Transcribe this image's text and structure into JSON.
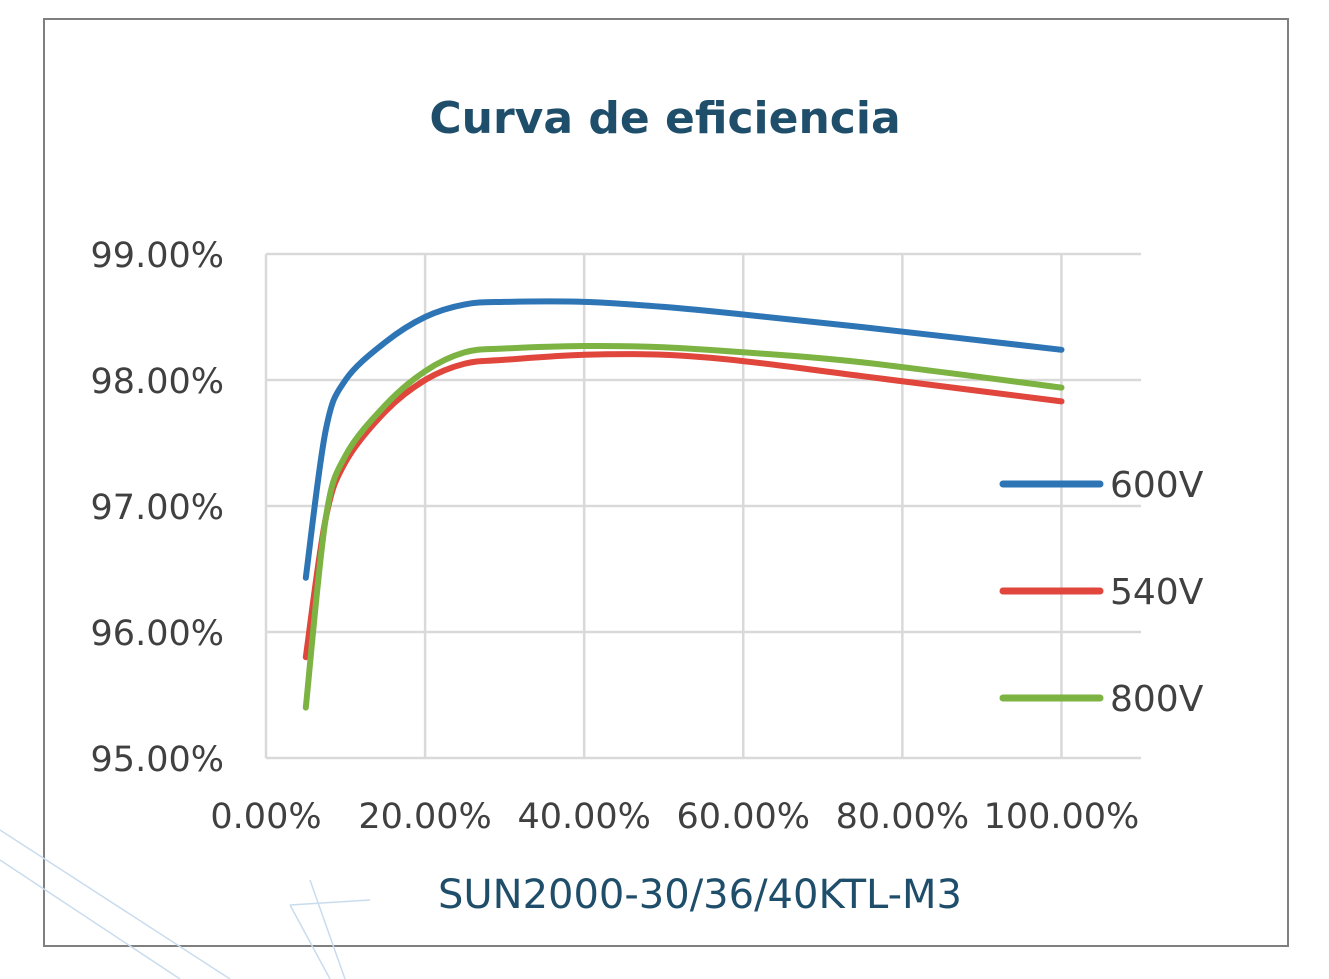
{
  "chart_data": {
    "type": "line",
    "title": "Curva de eficiencia",
    "xlabel": "SUN2000-30/36/40KTL-M3",
    "ylabel": "",
    "xlim": [
      0,
      110
    ],
    "ylim": [
      95,
      99
    ],
    "x_ticks": [
      "0.00%",
      "20.00%",
      "40.00%",
      "60.00%",
      "80.00%",
      "100.00%"
    ],
    "y_ticks": [
      "99.00%",
      "98.00%",
      "97.00%",
      "96.00%",
      "95.00%"
    ],
    "grid": true,
    "legend_position": "right",
    "series": [
      {
        "name": "600V",
        "color": "#2e75b6",
        "x": [
          5,
          7.5,
          10,
          15,
          20,
          25,
          30,
          40,
          50,
          60,
          75,
          100
        ],
        "y": [
          96.43,
          97.6,
          98.0,
          98.3,
          98.5,
          98.6,
          98.62,
          98.62,
          98.58,
          98.52,
          98.42,
          98.24
        ]
      },
      {
        "name": "540V",
        "color": "#e0463c",
        "x": [
          5,
          7.5,
          10,
          15,
          20,
          25,
          30,
          40,
          50,
          60,
          75,
          100
        ],
        "y": [
          95.8,
          96.9,
          97.35,
          97.75,
          98.0,
          98.13,
          98.16,
          98.2,
          98.2,
          98.15,
          98.03,
          97.83
        ]
      },
      {
        "name": "800V",
        "color": "#7cb342",
        "x": [
          5,
          7.5,
          10,
          15,
          20,
          25,
          30,
          40,
          50,
          60,
          75,
          100
        ],
        "y": [
          95.4,
          96.9,
          97.4,
          97.8,
          98.07,
          98.22,
          98.25,
          98.27,
          98.26,
          98.22,
          98.14,
          97.94
        ]
      }
    ]
  }
}
